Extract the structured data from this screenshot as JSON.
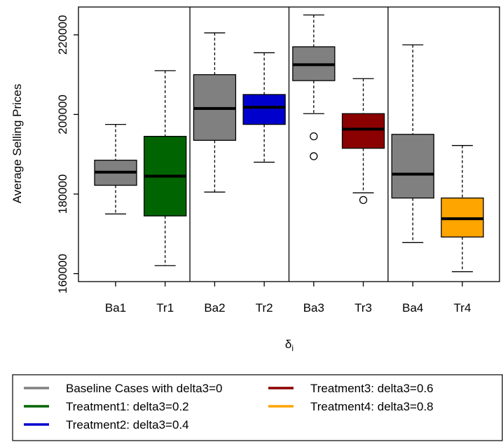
{
  "chart_data": {
    "type": "boxplot",
    "title": "",
    "xlabel": "δ",
    "xlabel_subscript": "i",
    "ylabel": "Average Selling Prices",
    "ylim": [
      158000,
      227000
    ],
    "yticks": [
      160000,
      180000,
      200000,
      220000
    ],
    "ytick_labels": [
      "160000",
      "180000",
      "200000",
      "220000"
    ],
    "grid": false,
    "group_separators_after": [
      2,
      4,
      6
    ],
    "boxes": [
      {
        "label": "Ba1",
        "color": "#808080",
        "whisker_low": 175000,
        "q1": 182200,
        "median": 185500,
        "q3": 188500,
        "whisker_high": 197500,
        "outliers": []
      },
      {
        "label": "Tr1",
        "color": "#006400",
        "whisker_low": 162000,
        "q1": 174500,
        "median": 184500,
        "q3": 194500,
        "whisker_high": 211000,
        "outliers": []
      },
      {
        "label": "Ba2",
        "color": "#808080",
        "whisker_low": 180500,
        "q1": 193500,
        "median": 201500,
        "q3": 210000,
        "whisker_high": 220500,
        "outliers": []
      },
      {
        "label": "Tr2",
        "color": "#0000CD",
        "whisker_low": 188000,
        "q1": 197500,
        "median": 201800,
        "q3": 205000,
        "whisker_high": 215500,
        "outliers": []
      },
      {
        "label": "Ba3",
        "color": "#808080",
        "whisker_low": 200200,
        "q1": 208500,
        "median": 212500,
        "q3": 217000,
        "whisker_high": 225000,
        "outliers": [
          194500,
          189500
        ]
      },
      {
        "label": "Tr3",
        "color": "#8B0000",
        "whisker_low": 180300,
        "q1": 191500,
        "median": 196300,
        "q3": 200200,
        "whisker_high": 209000,
        "outliers": [
          178500
        ]
      },
      {
        "label": "Ba4",
        "color": "#808080",
        "whisker_low": 167800,
        "q1": 179000,
        "median": 185000,
        "q3": 195000,
        "whisker_high": 217500,
        "outliers": []
      },
      {
        "label": "Tr4",
        "color": "#FFA500",
        "whisker_low": 160500,
        "q1": 169200,
        "median": 173800,
        "q3": 179000,
        "whisker_high": 192200,
        "outliers": []
      }
    ],
    "legend": {
      "placement": "bottom",
      "items": [
        {
          "label": "Baseline Cases with delta3=0",
          "color": "#808080"
        },
        {
          "label": "Treatment1: delta3=0.2",
          "color": "#006400"
        },
        {
          "label": "Treatment2: delta3=0.4",
          "color": "#0000CD"
        },
        {
          "label": "Treatment3: delta3=0.6",
          "color": "#8B0000"
        },
        {
          "label": "Treatment4: delta3=0.8",
          "color": "#FFA500"
        }
      ]
    }
  }
}
